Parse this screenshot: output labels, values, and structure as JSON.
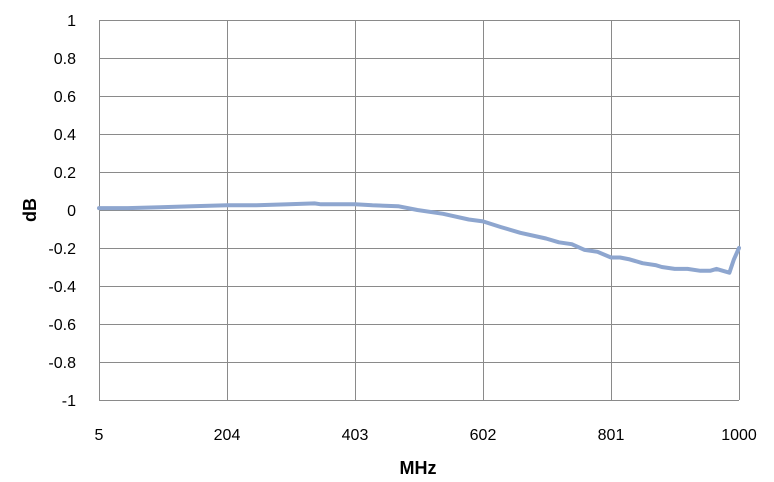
{
  "chart_data": {
    "type": "line",
    "title": "",
    "xlabel": "MHz",
    "ylabel": "dB",
    "xlim": [
      5,
      1000
    ],
    "ylim": [
      -1,
      1
    ],
    "x_ticks": [
      5,
      204,
      403,
      602,
      801,
      1000
    ],
    "y_ticks": [
      1,
      0.8,
      0.6,
      0.4,
      0.2,
      0,
      -0.2,
      -0.4,
      -0.6,
      -0.8,
      -1
    ],
    "grid": true,
    "legend": "none",
    "series": [
      {
        "color": "#8EA6CF",
        "x": [
          5,
          50,
          100,
          150,
          204,
          250,
          300,
          340,
          350,
          403,
          430,
          470,
          500,
          540,
          580,
          602,
          630,
          660,
          700,
          720,
          740,
          760,
          780,
          801,
          815,
          830,
          850,
          870,
          880,
          900,
          920,
          940,
          955,
          965,
          975,
          985,
          992,
          1000
        ],
        "y": [
          0.01,
          0.01,
          0.015,
          0.02,
          0.025,
          0.025,
          0.03,
          0.035,
          0.03,
          0.03,
          0.025,
          0.02,
          0.0,
          -0.02,
          -0.05,
          -0.06,
          -0.09,
          -0.12,
          -0.15,
          -0.17,
          -0.18,
          -0.21,
          -0.22,
          -0.25,
          -0.25,
          -0.26,
          -0.28,
          -0.29,
          -0.3,
          -0.31,
          -0.31,
          -0.32,
          -0.32,
          -0.31,
          -0.32,
          -0.33,
          -0.26,
          -0.2
        ]
      }
    ]
  }
}
